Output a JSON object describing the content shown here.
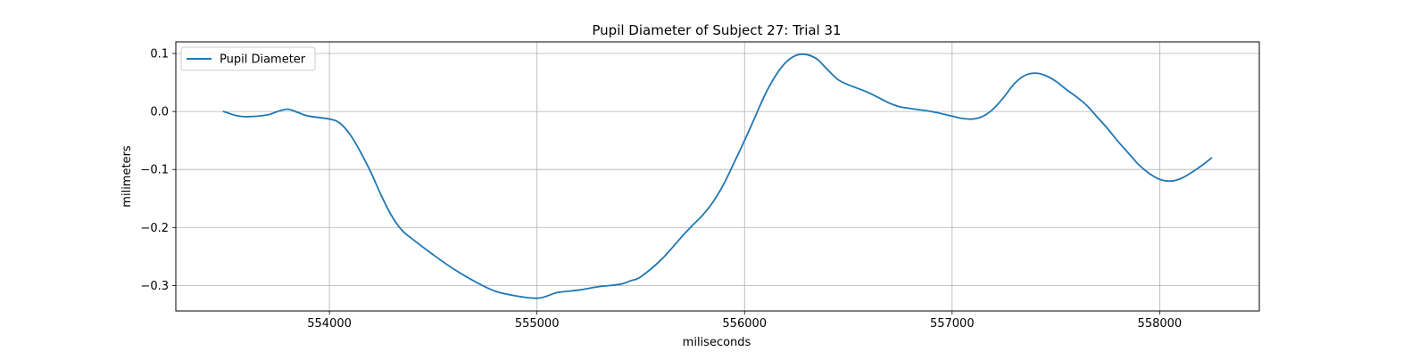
{
  "figure": {
    "title": "Pupil Diameter of Subject 27: Trial 31"
  },
  "chart_data": {
    "type": "line",
    "title": "Pupil Diameter of Subject 27: Trial 31",
    "xlabel": "miliseconds",
    "ylabel": "milimeters",
    "xlim": [
      553260,
      558480
    ],
    "ylim": [
      -0.344,
      0.12
    ],
    "xticks": [
      554000,
      555000,
      556000,
      557000,
      558000
    ],
    "xtick_labels": [
      "554000",
      "555000",
      "556000",
      "557000",
      "558000"
    ],
    "yticks": [
      0.1,
      0.0,
      -0.1,
      -0.2,
      -0.3
    ],
    "ytick_labels": [
      "0.1",
      "0.0",
      "−0.1",
      "−0.2",
      "−0.3"
    ],
    "grid": true,
    "legend_position": "upper-left",
    "series": [
      {
        "name": "Pupil Diameter",
        "color": "#1f77b4",
        "x": [
          553490,
          553550,
          553600,
          553700,
          553750,
          553800,
          553850,
          553900,
          554000,
          554050,
          554100,
          554150,
          554200,
          554250,
          554300,
          554350,
          554400,
          554500,
          554600,
          554700,
          554800,
          554900,
          555000,
          555050,
          555100,
          555200,
          555300,
          555400,
          555450,
          555500,
          555600,
          555700,
          555750,
          555800,
          555850,
          555900,
          555950,
          556000,
          556050,
          556100,
          556150,
          556200,
          556250,
          556300,
          556350,
          556400,
          556450,
          556500,
          556600,
          556700,
          556750,
          556800,
          556900,
          557000,
          557050,
          557100,
          557150,
          557200,
          557250,
          557300,
          557350,
          557400,
          557450,
          557500,
          557550,
          557600,
          557650,
          557700,
          557750,
          557800,
          557850,
          557900,
          557950,
          558000,
          558050,
          558100,
          558150,
          558200,
          558250
        ],
        "y": [
          0.0,
          -0.007,
          -0.009,
          -0.006,
          0.0,
          0.004,
          -0.002,
          -0.008,
          -0.013,
          -0.02,
          -0.04,
          -0.07,
          -0.105,
          -0.145,
          -0.18,
          -0.205,
          -0.22,
          -0.247,
          -0.272,
          -0.293,
          -0.31,
          -0.318,
          -0.322,
          -0.318,
          -0.312,
          -0.308,
          -0.302,
          -0.298,
          -0.292,
          -0.285,
          -0.255,
          -0.215,
          -0.196,
          -0.178,
          -0.155,
          -0.125,
          -0.088,
          -0.05,
          -0.01,
          0.03,
          0.062,
          0.085,
          0.097,
          0.098,
          0.09,
          0.072,
          0.055,
          0.046,
          0.032,
          0.014,
          0.008,
          0.005,
          0.0,
          -0.008,
          -0.012,
          -0.013,
          -0.008,
          0.005,
          0.025,
          0.048,
          0.062,
          0.066,
          0.062,
          0.052,
          0.038,
          0.025,
          0.01,
          -0.01,
          -0.03,
          -0.052,
          -0.072,
          -0.092,
          -0.107,
          -0.117,
          -0.12,
          -0.116,
          -0.106,
          -0.094,
          -0.08
        ]
      }
    ]
  }
}
